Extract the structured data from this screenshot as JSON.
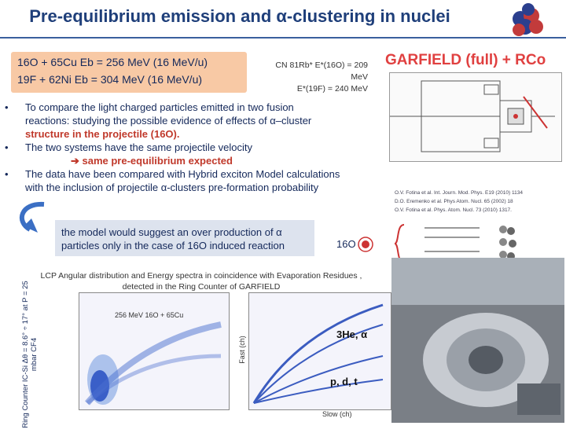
{
  "title": "Pre-equilibrium emission and α-clustering in nuclei",
  "reactions": {
    "line1": "16O + 65Cu Eb = 256 MeV (16 MeV/u)",
    "line2": "19F + 62Ni Eb = 304 MeV (16 MeV/u)"
  },
  "cn": {
    "line1": "CN 81Rb* E*(16O) = 209 MeV",
    "line2": "E*(19F) = 240 MeV"
  },
  "garfield_title": "GARFIELD (full) + RCo",
  "bullets": {
    "b1a": "To compare the light charged particles emitted in two fusion",
    "b1b": "reactions: studying the possible evidence of effects of α–cluster",
    "b1c": "structure in the projectile (16O).",
    "b2a": "The two systems have the same projectile velocity",
    "b2b": "➔ same pre-equilibrium expected",
    "b3a": "The data have been compared with Hybrid exciton Model calculations",
    "b3b": "with the inclusion of projectile α-clusters pre-formation probability"
  },
  "references": {
    "r1": "O.V. Fotina et al. Int. Journ. Mod. Phys. E19 (2010) 1134",
    "r2": "D.O. Eremenko et al. Phys Atom. Nucl. 65 (2002) 18",
    "r3": "O.V. Fotina et al. Phys. Atom. Nucl. 73 (2010) 1317."
  },
  "model": {
    "line1": "the model would suggest an over production of α",
    "line2": "particles only in the case of 16O induced reaction",
    "o16_label": "16O"
  },
  "lcp": {
    "line1": "LCP Angular distribution and Energy spectra in coincidence with Evaporation Residues ,",
    "line2": "detected in the Ring Counter of GARFIELD"
  },
  "ring_counter_label": "Ring Counter IC-Si Δθ = 8.6° ÷ 17° at P = 25 mbar CF4",
  "plot1": {
    "label": "256 MeV 16O + 65Cu"
  },
  "plot2": {
    "ylabel": "Fast (ch)",
    "xlabel": "Slow (ch)",
    "band_he": "3He, α",
    "band_pdt": "p, d, t"
  },
  "colors": {
    "title": "#1f3f7a",
    "accent_red": "#e04040",
    "reaction_box": "#f8c9a5"
  }
}
